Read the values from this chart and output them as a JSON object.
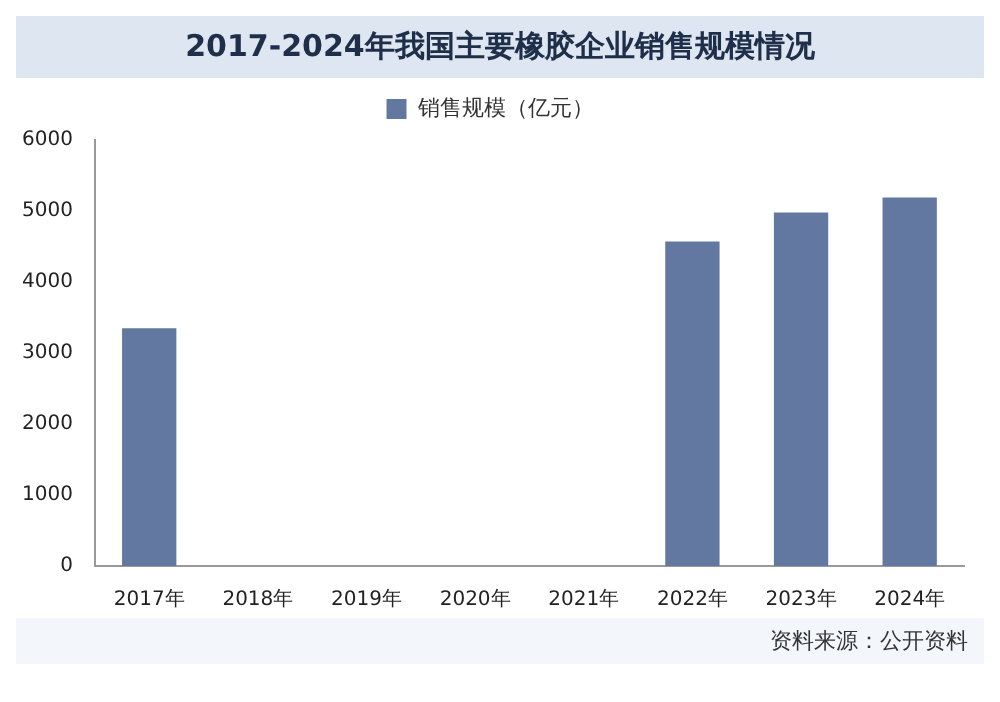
{
  "chart_data": {
    "type": "bar",
    "title": "2017-2024年我国主要橡胶企业销售规模情况",
    "categories": [
      "2017年",
      "2018年",
      "2019年",
      "2020年",
      "2021年",
      "2022年",
      "2023年",
      "2024年"
    ],
    "series": [
      {
        "name": "销售规模（亿元）",
        "color": "#6378a0",
        "values": [
          3350,
          null,
          null,
          null,
          null,
          4570,
          4980,
          5190
        ]
      }
    ],
    "ylim": [
      0,
      6000
    ],
    "yticks": [
      0,
      1000,
      2000,
      3000,
      4000,
      5000,
      6000
    ],
    "grid": false,
    "legend": "top",
    "annotations": [
      "资料来源：公开资料"
    ]
  }
}
